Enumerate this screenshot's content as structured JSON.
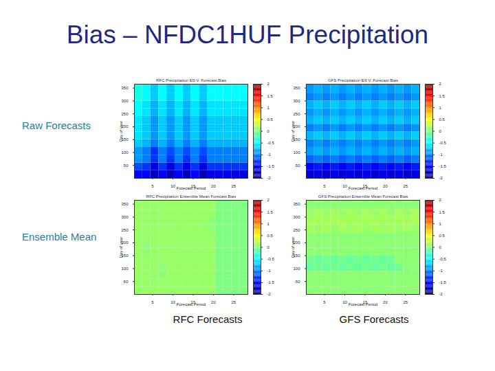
{
  "title": "Bias – NFDC1HUF Precipitation",
  "row_labels": [
    "Raw Forecasts",
    "Ensemble Mean"
  ],
  "column_labels": [
    "RFC Forecasts",
    "GFS Forecasts"
  ],
  "chart_data": [
    {
      "type": "heatmap",
      "title": "RFC Precipitation ES V. Forecast Bias",
      "xlabel": "Forecast Period",
      "ylabel": "Day of year",
      "xlim": [
        0.5,
        28.5
      ],
      "ylim": [
        0,
        365
      ],
      "xticks": [
        5,
        10,
        15,
        20,
        25
      ],
      "yticks": [
        50,
        100,
        150,
        200,
        250,
        300,
        350
      ],
      "x_edges": [
        0.5,
        2.5,
        4.5,
        6.5,
        8.5,
        10.5,
        12.5,
        14.5,
        16.5,
        18.5,
        20.5,
        22.5,
        24.5,
        26.5,
        28.5
      ],
      "y_edges": [
        0,
        30,
        60,
        90,
        120,
        150,
        180,
        210,
        240,
        270,
        300,
        330,
        365
      ],
      "cells": [
        [
          -1.5,
          -1.5,
          -1.8,
          -1.5,
          -1.8,
          -1.5,
          -1.8,
          -1.5,
          -1.8,
          -1.6,
          -1.6,
          -1.6,
          -1.6,
          -1.6
        ],
        [
          -1.2,
          -1.3,
          -1.6,
          -1.3,
          -1.6,
          -1.3,
          -1.6,
          -1.3,
          -1.6,
          -1.3,
          -1.3,
          -1.3,
          -1.3,
          -1.3
        ],
        [
          -0.9,
          -1.0,
          -1.3,
          -1.0,
          -1.3,
          -1.0,
          -1.3,
          -1.0,
          -1.3,
          -1.0,
          -1.0,
          -1.0,
          -1.0,
          -1.0
        ],
        [
          -0.9,
          -1.0,
          -1.3,
          -1.0,
          -1.2,
          -1.0,
          -1.2,
          -1.0,
          -1.2,
          -1.0,
          -1.0,
          -1.0,
          -1.0,
          -1.0
        ],
        [
          -0.7,
          -0.8,
          -1.0,
          -0.8,
          -1.0,
          -0.8,
          -1.0,
          -0.8,
          -1.0,
          -0.8,
          -0.8,
          -0.8,
          -0.8,
          -0.8
        ],
        [
          -0.6,
          -0.7,
          -0.9,
          -0.7,
          -0.9,
          -0.7,
          -0.9,
          -0.7,
          -0.9,
          -0.7,
          -0.7,
          -0.7,
          -0.7,
          -0.7
        ],
        [
          -0.6,
          -0.7,
          -0.9,
          -0.7,
          -0.9,
          -0.7,
          -0.9,
          -0.7,
          -0.9,
          -0.7,
          -0.7,
          -0.7,
          -0.7,
          -0.7
        ],
        [
          -0.6,
          -0.7,
          -0.9,
          -0.7,
          -0.9,
          -0.7,
          -0.9,
          -0.7,
          -0.9,
          -0.7,
          -0.7,
          -0.7,
          -0.7,
          -0.7
        ],
        [
          -0.5,
          -0.6,
          -0.8,
          -0.6,
          -0.8,
          -0.6,
          -0.8,
          -0.6,
          -0.8,
          -0.6,
          -0.6,
          -0.6,
          -0.6,
          -0.6
        ],
        [
          -0.5,
          -0.6,
          -0.8,
          -0.6,
          -0.8,
          -0.6,
          -0.8,
          -0.6,
          -0.8,
          -0.6,
          -0.6,
          -0.6,
          -0.6,
          -0.6
        ],
        [
          -0.4,
          -0.5,
          -0.7,
          -0.5,
          -0.7,
          -0.5,
          -0.7,
          -0.5,
          -0.7,
          -0.5,
          -0.5,
          -0.5,
          -0.5,
          -0.5
        ],
        [
          -0.4,
          -0.5,
          -0.7,
          -0.5,
          -0.7,
          -0.5,
          -0.7,
          -0.5,
          -0.7,
          -0.5,
          -0.5,
          -0.5,
          -0.5,
          -0.5
        ]
      ],
      "clim": [
        -2,
        2
      ],
      "colorbar_ticks": [
        -2,
        -1.5,
        -1,
        -0.5,
        0,
        0.5,
        1,
        1.5,
        2
      ]
    },
    {
      "type": "heatmap",
      "title": "GFS Precipitation ES V. Forecast Bias",
      "xlabel": "Forecast Period",
      "ylabel": "Day of year",
      "xlim": [
        0.5,
        28.5
      ],
      "ylim": [
        0,
        365
      ],
      "xticks": [
        5,
        10,
        15,
        20,
        25
      ],
      "yticks": [
        50,
        100,
        150,
        200,
        250,
        300,
        350
      ],
      "x_edges": [
        0.5,
        2.5,
        4.5,
        6.5,
        8.5,
        10.5,
        12.5,
        14.5,
        16.5,
        18.5,
        20.5,
        22.5,
        24.5,
        26.5,
        28.5
      ],
      "y_edges": [
        0,
        30,
        60,
        90,
        120,
        150,
        180,
        210,
        240,
        270,
        300,
        330,
        365
      ],
      "cells": [
        [
          -1.7,
          -1.6,
          -1.7,
          -1.6,
          -1.7,
          -1.6,
          -1.7,
          -1.6,
          -1.7,
          -1.6,
          -1.7,
          -1.6,
          -1.7,
          -1.6
        ],
        [
          -1.5,
          -1.4,
          -1.5,
          -1.4,
          -1.5,
          -1.4,
          -1.5,
          -1.4,
          -1.5,
          -1.4,
          -1.5,
          -1.4,
          -1.5,
          -1.4
        ],
        [
          -1.1,
          -1.0,
          -1.1,
          -1.0,
          -1.1,
          -1.0,
          -1.1,
          -1.0,
          -1.1,
          -1.0,
          -1.1,
          -1.0,
          -1.1,
          -1.0
        ],
        [
          -0.9,
          -0.8,
          -0.9,
          -0.8,
          -0.9,
          -0.8,
          -0.9,
          -0.8,
          -0.9,
          -0.8,
          -0.9,
          -0.8,
          -0.9,
          -0.8
        ],
        [
          -1.0,
          -0.9,
          -1.0,
          -0.9,
          -1.0,
          -0.9,
          -1.0,
          -0.9,
          -1.0,
          -0.9,
          -1.0,
          -0.9,
          -1.0,
          -0.9
        ],
        [
          -0.8,
          -0.7,
          -0.8,
          -0.7,
          -0.8,
          -0.7,
          -0.8,
          -0.7,
          -0.8,
          -0.7,
          -0.8,
          -0.7,
          -0.8,
          -0.7
        ],
        [
          -1.0,
          -0.9,
          -1.0,
          -0.9,
          -1.0,
          -0.9,
          -1.0,
          -0.9,
          -1.0,
          -0.9,
          -1.0,
          -0.9,
          -1.0,
          -0.9
        ],
        [
          -0.8,
          -0.7,
          -0.8,
          -0.7,
          -0.8,
          -0.7,
          -0.8,
          -0.7,
          -0.8,
          -0.7,
          -0.8,
          -0.7,
          -0.8,
          -0.7
        ],
        [
          -0.9,
          -0.8,
          -0.9,
          -0.8,
          -0.9,
          -0.8,
          -0.9,
          -0.8,
          -0.9,
          -0.8,
          -0.9,
          -0.8,
          -0.9,
          -0.8
        ],
        [
          -0.8,
          -0.7,
          -0.8,
          -0.7,
          -0.8,
          -0.7,
          -0.8,
          -0.7,
          -0.8,
          -0.7,
          -0.8,
          -0.7,
          -0.8,
          -0.7
        ],
        [
          -1.0,
          -0.9,
          -1.0,
          -0.9,
          -1.0,
          -0.9,
          -1.0,
          -0.9,
          -1.0,
          -0.9,
          -1.0,
          -0.9,
          -1.0,
          -0.9
        ],
        [
          -0.9,
          -0.8,
          -0.9,
          -0.8,
          -0.9,
          -0.8,
          -0.9,
          -0.8,
          -0.9,
          -0.8,
          -0.9,
          -0.8,
          -0.9,
          -0.8
        ]
      ],
      "clim": [
        -2,
        2
      ],
      "colorbar_ticks": [
        -2,
        -1.5,
        -1,
        -0.5,
        0,
        0.5,
        1,
        1.5,
        2
      ]
    },
    {
      "type": "heatmap",
      "title": "RFC Precipitation Ensemble Mean Forecast Bias",
      "xlabel": "Forecast Period",
      "ylabel": "Day of year",
      "xlim": [
        0.5,
        28.5
      ],
      "ylim": [
        0,
        365
      ],
      "xticks": [
        5,
        10,
        15,
        20,
        25
      ],
      "yticks": [
        50,
        100,
        150,
        200,
        250,
        300,
        350
      ],
      "x_edges": [
        0.5,
        2.5,
        4.5,
        6.5,
        8.5,
        10.5,
        12.5,
        14.5,
        16.5,
        18.5,
        20.5,
        22.5,
        24.5,
        26.5,
        28.5
      ],
      "y_edges": [
        0,
        30,
        60,
        90,
        120,
        150,
        180,
        210,
        240,
        270,
        300,
        330,
        365
      ],
      "cells": [
        [
          0.1,
          0.1,
          0.1,
          0.1,
          0.1,
          0.1,
          0.1,
          0.1,
          0.1,
          0.1,
          0.0,
          0.0,
          0.0,
          0.0
        ],
        [
          0.1,
          0.1,
          0.1,
          0.1,
          0.1,
          0.1,
          0.1,
          0.1,
          0.1,
          0.1,
          0.0,
          0.0,
          0.0,
          0.0
        ],
        [
          0.1,
          0.1,
          0.1,
          0.05,
          0.1,
          0.1,
          0.1,
          0.1,
          0.1,
          0.1,
          0.0,
          0.0,
          0.0,
          0.0
        ],
        [
          0.1,
          0.1,
          0.1,
          0.05,
          0.1,
          0.1,
          0.1,
          0.1,
          0.1,
          0.1,
          0.0,
          0.0,
          0.0,
          0.0
        ],
        [
          0.1,
          0.1,
          0.1,
          0.1,
          0.1,
          0.1,
          0.1,
          0.1,
          0.1,
          0.1,
          0.0,
          0.0,
          0.0,
          0.0
        ],
        [
          0.1,
          0.05,
          0.1,
          0.1,
          0.1,
          0.1,
          0.1,
          0.1,
          0.1,
          0.1,
          0.0,
          0.0,
          0.0,
          0.0
        ],
        [
          0.1,
          0.05,
          0.1,
          0.1,
          0.1,
          0.1,
          0.1,
          0.1,
          0.1,
          0.1,
          0.0,
          0.0,
          0.0,
          0.0
        ],
        [
          0.1,
          0.1,
          0.1,
          0.1,
          0.1,
          0.1,
          0.1,
          0.1,
          0.1,
          0.1,
          0.0,
          0.0,
          0.0,
          0.0
        ],
        [
          0.1,
          0.1,
          0.1,
          0.1,
          0.1,
          0.1,
          0.1,
          0.1,
          0.1,
          0.05,
          0.0,
          0.0,
          0.0,
          0.0
        ],
        [
          0.1,
          0.1,
          0.1,
          0.1,
          0.1,
          0.1,
          0.1,
          0.1,
          0.1,
          0.05,
          0.0,
          0.0,
          0.0,
          0.0
        ],
        [
          0.1,
          0.1,
          0.1,
          0.1,
          0.1,
          0.1,
          0.1,
          0.1,
          0.1,
          0.1,
          0.0,
          0.0,
          0.0,
          0.0
        ],
        [
          0.1,
          0.1,
          0.1,
          0.1,
          0.1,
          0.1,
          0.1,
          0.1,
          0.1,
          0.1,
          0.0,
          0.0,
          0.0,
          0.0
        ]
      ],
      "clim": [
        -2,
        2
      ],
      "colorbar_ticks": [
        -2,
        -1.5,
        -1,
        -0.5,
        0,
        0.5,
        1,
        1.5,
        2
      ]
    },
    {
      "type": "heatmap",
      "title": "GFS Precipitation Ensemble Mean Forecast Bias",
      "xlabel": "Forecast Period",
      "ylabel": "Day of year",
      "xlim": [
        0.5,
        28.5
      ],
      "ylim": [
        0,
        365
      ],
      "xticks": [
        5,
        10,
        15,
        20,
        25
      ],
      "yticks": [
        50,
        100,
        150,
        200,
        250,
        300,
        350
      ],
      "x_edges": [
        0.5,
        2.5,
        4.5,
        6.5,
        8.5,
        10.5,
        12.5,
        14.5,
        16.5,
        18.5,
        20.5,
        22.5,
        24.5,
        26.5,
        28.5
      ],
      "y_edges": [
        0,
        30,
        60,
        90,
        120,
        150,
        180,
        210,
        240,
        270,
        300,
        330,
        365
      ],
      "cells": [
        [
          0.05,
          0.05,
          0.05,
          0.05,
          0.05,
          0.05,
          0.05,
          0.05,
          0.05,
          0.05,
          0.05,
          0.05,
          0.05,
          0.05
        ],
        [
          0.05,
          0.05,
          0.05,
          0.05,
          0.05,
          0.05,
          0.05,
          0.05,
          0.05,
          0.05,
          0.05,
          0.05,
          0.05,
          0.05
        ],
        [
          0.05,
          0.05,
          0.05,
          0.05,
          0.05,
          0.05,
          0.05,
          0.05,
          0.05,
          0.05,
          0.05,
          0.05,
          0.05,
          0.05
        ],
        [
          -0.1,
          -0.05,
          -0.1,
          -0.05,
          -0.1,
          -0.05,
          -0.1,
          -0.05,
          -0.1,
          -0.05,
          -0.1,
          -0.05,
          0.05,
          0.05
        ],
        [
          -0.05,
          -0.1,
          -0.05,
          -0.1,
          -0.05,
          -0.1,
          -0.05,
          -0.1,
          -0.05,
          -0.1,
          -0.05,
          0.05,
          0.05,
          0.05
        ],
        [
          0.05,
          0.05,
          0.05,
          0.05,
          0.05,
          0.05,
          0.05,
          0.05,
          0.05,
          0.05,
          0.05,
          0.05,
          0.05,
          0.05
        ],
        [
          0.05,
          0.05,
          0.05,
          0.05,
          0.05,
          0.05,
          0.05,
          0.05,
          0.05,
          0.05,
          0.05,
          0.05,
          0.05,
          0.05
        ],
        [
          0.05,
          0.05,
          0.05,
          0.05,
          0.05,
          0.05,
          0.05,
          0.05,
          0.05,
          0.05,
          0.05,
          0.05,
          0.05,
          0.05
        ],
        [
          0.15,
          0.1,
          0.15,
          0.1,
          0.15,
          0.1,
          0.15,
          0.1,
          0.15,
          0.1,
          0.15,
          0.1,
          0.15,
          0.1
        ],
        [
          0.15,
          0.15,
          0.15,
          0.15,
          0.15,
          0.15,
          0.15,
          0.15,
          0.15,
          0.15,
          0.15,
          0.15,
          0.15,
          0.15
        ],
        [
          0.1,
          0.15,
          0.1,
          0.15,
          0.1,
          0.15,
          0.1,
          0.15,
          0.1,
          0.15,
          0.1,
          0.15,
          0.1,
          0.15
        ],
        [
          0.05,
          0.05,
          0.05,
          0.05,
          0.05,
          0.05,
          0.05,
          0.05,
          0.05,
          0.05,
          0.05,
          0.05,
          0.05,
          0.05
        ]
      ],
      "clim": [
        -2,
        2
      ],
      "colorbar_ticks": [
        -2,
        -1.5,
        -1,
        -0.5,
        0,
        0.5,
        1,
        1.5,
        2
      ]
    }
  ]
}
